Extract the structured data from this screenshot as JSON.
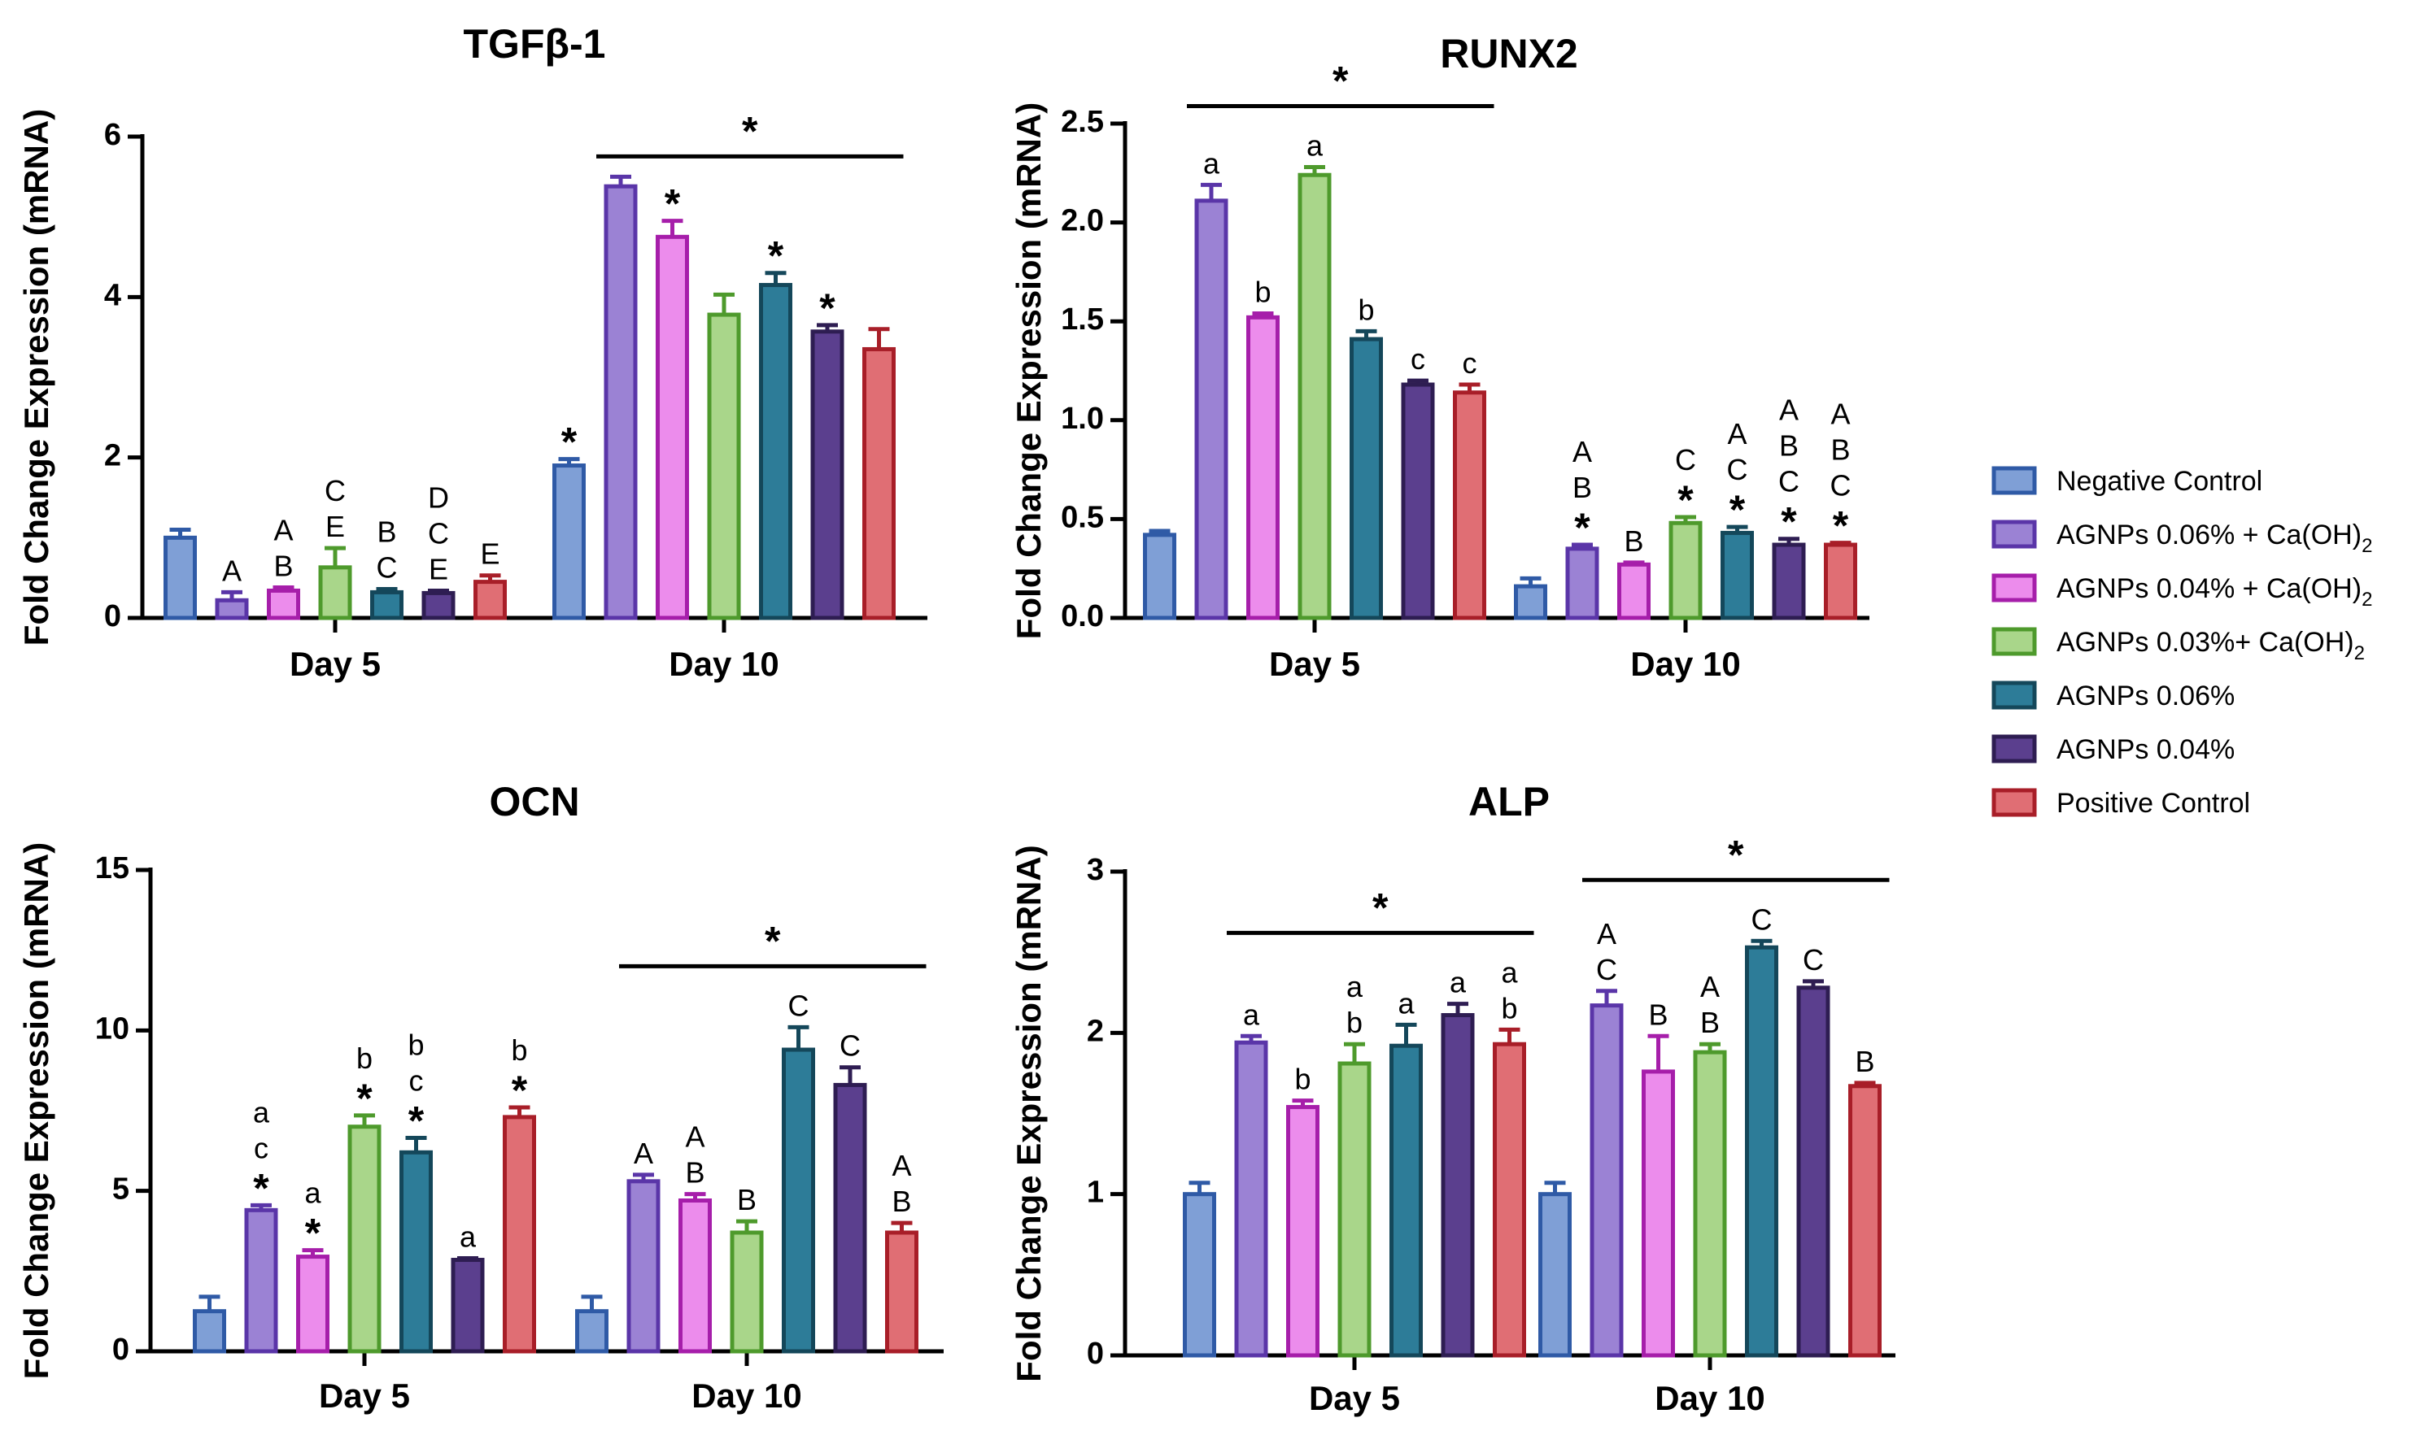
{
  "legend": [
    {
      "name": "Negative Control",
      "prefix": "Negative Control",
      "sub": "",
      "fill": "#7f9fd6",
      "stroke": "#2f5aa6"
    },
    {
      "name": "AGNPs 0.06% + Ca(OH)2",
      "prefix": "AGNPs 0.06% + Ca(OH)",
      "sub": "2",
      "fill": "#9b82d4",
      "stroke": "#5a35a8"
    },
    {
      "name": "AGNPs 0.04% + Ca(OH)2",
      "prefix": "AGNPs 0.04% + Ca(OH)",
      "sub": "2",
      "fill": "#ec8cec",
      "stroke": "#a61eaa"
    },
    {
      "name": "AGNPs 0.03%+ Ca(OH)2",
      "prefix": "AGNPs 0.03%+ Ca(OH)",
      "sub": "2",
      "fill": "#a9d68a",
      "stroke": "#4e9a2c"
    },
    {
      "name": "AGNPs 0.06%",
      "prefix": "AGNPs 0.06%",
      "sub": "",
      "fill": "#2d7c98",
      "stroke": "#14475a"
    },
    {
      "name": "AGNPs 0.04%",
      "prefix": "AGNPs 0.04%",
      "sub": "",
      "fill": "#5b3f8e",
      "stroke": "#2e1d52"
    },
    {
      "name": "Positive Control",
      "prefix": "Positive Control",
      "sub": "",
      "fill": "#e06e74",
      "stroke": "#a81e28"
    }
  ],
  "chart_data": [
    {
      "type": "bar",
      "title": "TGFβ-1",
      "ylabel": "Fold Change Expression (mRNA)",
      "xlabel": "",
      "categories": [
        "Day 5",
        "Day 10"
      ],
      "ylim": [
        0,
        6
      ],
      "yticks": [
        0,
        2,
        4,
        6
      ],
      "series": [
        {
          "name": "Negative Control",
          "values": [
            1.0,
            1.9
          ],
          "errors": [
            0.1,
            0.08
          ]
        },
        {
          "name": "AGNPs 0.06% + Ca(OH)2",
          "values": [
            0.22,
            5.38
          ],
          "errors": [
            0.1,
            0.12
          ]
        },
        {
          "name": "AGNPs 0.04% + Ca(OH)2",
          "values": [
            0.34,
            4.75
          ],
          "errors": [
            0.04,
            0.2
          ]
        },
        {
          "name": "AGNPs 0.03%+ Ca(OH)2",
          "values": [
            0.63,
            3.78
          ],
          "errors": [
            0.24,
            0.25
          ]
        },
        {
          "name": "AGNPs 0.06%",
          "values": [
            0.32,
            4.15
          ],
          "errors": [
            0.04,
            0.15
          ]
        },
        {
          "name": "AGNPs 0.04%",
          "values": [
            0.31,
            3.57
          ],
          "errors": [
            0.03,
            0.08
          ]
        },
        {
          "name": "Positive Control",
          "values": [
            0.45,
            3.35
          ],
          "errors": [
            0.08,
            0.25
          ]
        }
      ],
      "annotations": [
        [
          "",
          "*"
        ],
        [
          "A",
          ""
        ],
        [
          "A\nB",
          "*"
        ],
        [
          "C\nE",
          ""
        ],
        [
          "B\nC",
          "*"
        ],
        [
          "D\nC\nE",
          "*"
        ],
        [
          "E",
          ""
        ]
      ],
      "bracket_groups": [
        "Day 10"
      ],
      "bracket_label": "*"
    },
    {
      "type": "bar",
      "title": "RUNX2",
      "ylabel": "Fold Change Expression (mRNA)",
      "xlabel": "",
      "categories": [
        "Day 5",
        "Day 10"
      ],
      "ylim": [
        0,
        2.5
      ],
      "yticks": [
        0.0,
        0.5,
        1.0,
        1.5,
        2.0,
        2.5
      ],
      "tick_decimals": 1,
      "series": [
        {
          "name": "Negative Control",
          "values": [
            0.42,
            0.16
          ],
          "errors": [
            0.02,
            0.04
          ]
        },
        {
          "name": "AGNPs 0.06% + Ca(OH)2",
          "values": [
            2.11,
            0.35
          ],
          "errors": [
            0.08,
            0.02
          ]
        },
        {
          "name": "AGNPs 0.04% + Ca(OH)2",
          "values": [
            1.52,
            0.27
          ],
          "errors": [
            0.02,
            0.01
          ]
        },
        {
          "name": "AGNPs 0.03%+ Ca(OH)2",
          "values": [
            2.24,
            0.48
          ],
          "errors": [
            0.04,
            0.03
          ]
        },
        {
          "name": "AGNPs 0.06%",
          "values": [
            1.41,
            0.43
          ],
          "errors": [
            0.04,
            0.03
          ]
        },
        {
          "name": "AGNPs 0.04%",
          "values": [
            1.18,
            0.37
          ],
          "errors": [
            0.02,
            0.03
          ]
        },
        {
          "name": "Positive Control",
          "values": [
            1.14,
            0.37
          ],
          "errors": [
            0.04,
            0.01
          ]
        }
      ],
      "annotations": [
        [
          "",
          ""
        ],
        [
          "a",
          "A\nB\n*"
        ],
        [
          "b",
          "B"
        ],
        [
          "a",
          "C\n*"
        ],
        [
          "b",
          "A\nC\n*"
        ],
        [
          "c",
          "A\nB\nC\n*"
        ],
        [
          "c",
          "A\nB\nC\n*"
        ]
      ],
      "bracket_groups": [
        "Day 5"
      ],
      "bracket_label": "*"
    },
    {
      "type": "bar",
      "title": "OCN",
      "ylabel": "Fold Change Expression (mRNA)",
      "xlabel": "",
      "categories": [
        "Day 5",
        "Day 10"
      ],
      "ylim": [
        0,
        15
      ],
      "yticks": [
        0,
        5,
        10,
        15
      ],
      "series": [
        {
          "name": "Negative Control",
          "values": [
            1.25,
            1.25
          ],
          "errors": [
            0.45,
            0.45
          ]
        },
        {
          "name": "AGNPs 0.06% + Ca(OH)2",
          "values": [
            4.4,
            5.3
          ],
          "errors": [
            0.15,
            0.2
          ]
        },
        {
          "name": "AGNPs 0.04% + Ca(OH)2",
          "values": [
            2.95,
            4.7
          ],
          "errors": [
            0.2,
            0.2
          ]
        },
        {
          "name": "AGNPs 0.03%+ Ca(OH)2",
          "values": [
            7.0,
            3.7
          ],
          "errors": [
            0.35,
            0.35
          ]
        },
        {
          "name": "AGNPs 0.06%",
          "values": [
            6.2,
            9.4
          ],
          "errors": [
            0.45,
            0.7
          ]
        },
        {
          "name": "AGNPs 0.04%",
          "values": [
            2.85,
            8.3
          ],
          "errors": [
            0.05,
            0.55
          ]
        },
        {
          "name": "Positive Control",
          "values": [
            7.3,
            3.7
          ],
          "errors": [
            0.3,
            0.3
          ]
        }
      ],
      "annotations": [
        [
          "",
          ""
        ],
        [
          "a\nc\n*",
          "A"
        ],
        [
          "a\n*",
          "A\nB"
        ],
        [
          "b\n*",
          "B"
        ],
        [
          "b\nc\n*",
          "C"
        ],
        [
          "a",
          "C"
        ],
        [
          "b\n*",
          "A\nB"
        ]
      ],
      "bracket_groups": [
        "Day 10"
      ],
      "bracket_label": "*"
    },
    {
      "type": "bar",
      "title": "ALP",
      "ylabel": "Fold Change Expression (mRNA)",
      "xlabel": "",
      "categories": [
        "Day 5",
        "Day 10"
      ],
      "ylim": [
        0,
        3
      ],
      "yticks": [
        0,
        1,
        2,
        3
      ],
      "series": [
        {
          "name": "Negative Control",
          "values": [
            1.0,
            1.0
          ],
          "errors": [
            0.07,
            0.07
          ]
        },
        {
          "name": "AGNPs 0.06% + Ca(OH)2",
          "values": [
            1.94,
            2.17
          ],
          "errors": [
            0.04,
            0.09
          ]
        },
        {
          "name": "AGNPs 0.04% + Ca(OH)2",
          "values": [
            1.54,
            1.76
          ],
          "errors": [
            0.04,
            0.22
          ]
        },
        {
          "name": "AGNPs 0.03%+ Ca(OH)2",
          "values": [
            1.81,
            1.88
          ],
          "errors": [
            0.12,
            0.05
          ]
        },
        {
          "name": "AGNPs 0.06%",
          "values": [
            1.92,
            2.53
          ],
          "errors": [
            0.13,
            0.04
          ]
        },
        {
          "name": "AGNPs 0.04%",
          "values": [
            2.11,
            2.28
          ],
          "errors": [
            0.07,
            0.04
          ]
        },
        {
          "name": "Positive Control",
          "values": [
            1.93,
            1.67
          ],
          "errors": [
            0.09,
            0.02
          ]
        }
      ],
      "annotations": [
        [
          "",
          ""
        ],
        [
          "a",
          "A\nC"
        ],
        [
          "b",
          "B"
        ],
        [
          "a\nb",
          "A\nB"
        ],
        [
          "a",
          "C"
        ],
        [
          "a",
          "C"
        ],
        [
          "a\nb",
          "B"
        ]
      ],
      "bracket_groups": [
        "Day 5",
        "Day 10"
      ],
      "bracket_label": "*"
    }
  ]
}
